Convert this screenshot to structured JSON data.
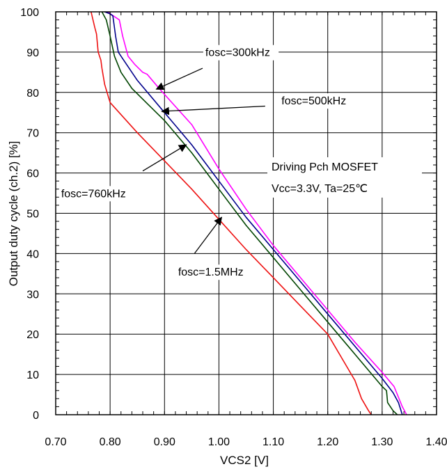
{
  "chart_data": {
    "type": "line",
    "title": "",
    "xlabel": "VCS2 [V]",
    "ylabel": "Output duty cycle (ch.2) [%]",
    "xlim": [
      0.7,
      1.4
    ],
    "ylim": [
      0,
      100
    ],
    "xticks": [
      "0.70",
      "0.80",
      "0.90",
      "1.00",
      "1.10",
      "1.20",
      "1.30",
      "1.40"
    ],
    "yticks": [
      "0",
      "10",
      "20",
      "30",
      "40",
      "50",
      "60",
      "70",
      "80",
      "90",
      "100"
    ],
    "grid": true,
    "series": [
      {
        "name": "fosc=300kHz",
        "color": "#ff00ff",
        "points": [
          [
            0.795,
            100
          ],
          [
            0.817,
            98
          ],
          [
            0.823,
            94
          ],
          [
            0.833,
            89
          ],
          [
            0.845,
            87
          ],
          [
            0.86,
            85
          ],
          [
            0.868,
            84.5
          ],
          [
            0.89,
            81
          ],
          [
            0.95,
            72
          ],
          [
            1.0,
            61
          ],
          [
            1.05,
            51
          ],
          [
            1.1,
            42
          ],
          [
            1.15,
            34
          ],
          [
            1.2,
            26
          ],
          [
            1.25,
            18
          ],
          [
            1.3,
            10.5
          ],
          [
            1.322,
            7
          ],
          [
            1.337,
            2
          ],
          [
            1.345,
            0
          ]
        ]
      },
      {
        "name": "fosc=500kHz",
        "color": "#00008b",
        "points": [
          [
            0.79,
            100
          ],
          [
            0.8,
            99.5
          ],
          [
            0.805,
            99
          ],
          [
            0.81,
            94
          ],
          [
            0.815,
            90
          ],
          [
            0.83,
            87
          ],
          [
            0.85,
            83
          ],
          [
            0.9,
            75
          ],
          [
            0.95,
            67
          ],
          [
            1.0,
            58
          ],
          [
            1.05,
            49
          ],
          [
            1.1,
            41
          ],
          [
            1.15,
            33
          ],
          [
            1.2,
            25
          ],
          [
            1.25,
            17
          ],
          [
            1.3,
            9
          ],
          [
            1.32,
            5.5
          ],
          [
            1.33,
            3
          ],
          [
            1.337,
            0
          ]
        ]
      },
      {
        "name": "fosc=760kHz",
        "color": "#004400",
        "points": [
          [
            0.785,
            100
          ],
          [
            0.793,
            98
          ],
          [
            0.8,
            94
          ],
          [
            0.808,
            89
          ],
          [
            0.82,
            85
          ],
          [
            0.84,
            81
          ],
          [
            0.87,
            77
          ],
          [
            0.9,
            73
          ],
          [
            0.95,
            65
          ],
          [
            1.0,
            56
          ],
          [
            1.05,
            47
          ],
          [
            1.1,
            39
          ],
          [
            1.15,
            31
          ],
          [
            1.2,
            23
          ],
          [
            1.25,
            15
          ],
          [
            1.3,
            7
          ],
          [
            1.308,
            6
          ],
          [
            1.31,
            3
          ],
          [
            1.32,
            1
          ],
          [
            1.328,
            0
          ]
        ]
      },
      {
        "name": "fosc=1.5MHz",
        "color": "#ee1111",
        "points": [
          [
            0.765,
            100
          ],
          [
            0.772,
            96
          ],
          [
            0.775,
            94.5
          ],
          [
            0.778,
            90
          ],
          [
            0.783,
            88
          ],
          [
            0.785,
            86
          ],
          [
            0.79,
            82
          ],
          [
            0.8,
            77.5
          ],
          [
            0.85,
            70
          ],
          [
            0.9,
            63
          ],
          [
            0.95,
            56
          ],
          [
            1.0,
            48.5
          ],
          [
            1.05,
            41
          ],
          [
            1.1,
            34
          ],
          [
            1.15,
            27
          ],
          [
            1.2,
            20
          ],
          [
            1.25,
            8.5
          ],
          [
            1.262,
            4
          ],
          [
            1.275,
            1
          ],
          [
            1.28,
            0
          ]
        ]
      }
    ],
    "annotations": [
      {
        "text": "fosc=300kHz",
        "label_x": 0.975,
        "label_y": 89,
        "arrow_to": [
          0.885,
          80.8
        ],
        "arrow_from": [
          0.97,
          86
        ]
      },
      {
        "text": "fosc=500kHz",
        "label_x": 1.115,
        "label_y": 77,
        "arrow_to": [
          0.895,
          75.3
        ],
        "arrow_from": [
          1.085,
          76.6
        ]
      },
      {
        "text": "fosc=760kHz",
        "label_x": 0.71,
        "label_y": 54,
        "arrow_to": [
          0.94,
          67
        ],
        "arrow_from": [
          0.86,
          60.5
        ]
      },
      {
        "text": "fosc=1.5MHz",
        "label_x": 0.925,
        "label_y": 34.5,
        "arrow_to": [
          1.005,
          49
        ],
        "arrow_from": [
          0.955,
          40
        ]
      }
    ],
    "note_lines": [
      "Driving Pch MOSFET",
      "Vcc=3.3V,  Ta=25℃"
    ]
  }
}
